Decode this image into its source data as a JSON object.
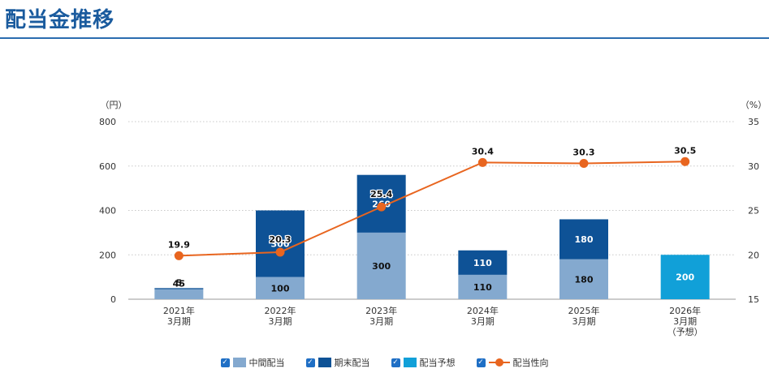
{
  "page": {
    "title": "配当金推移"
  },
  "colors": {
    "interim": "#84a9cf",
    "year_end": "#0e5296",
    "forecast": "#11a0d8",
    "payout_line": "#e8651f",
    "grid": "#c8c8c8",
    "title": "#1a5b9e"
  },
  "chart_data": {
    "type": "bar",
    "left_axis_unit": "（円）",
    "right_axis_unit": "（%）",
    "categories": [
      [
        "2021年",
        "3月期"
      ],
      [
        "2022年",
        "3月期"
      ],
      [
        "2023年",
        "3月期"
      ],
      [
        "2024年",
        "3月期"
      ],
      [
        "2025年",
        "3月期"
      ],
      [
        "2026年",
        "3月期",
        "（予想）"
      ]
    ],
    "ylim": [
      0,
      800
    ],
    "yticks": [
      0,
      200,
      400,
      600,
      800
    ],
    "y2lim": [
      15,
      35
    ],
    "y2ticks": [
      15,
      20,
      25,
      30,
      35
    ],
    "grid": true,
    "series": [
      {
        "name": "中間配当",
        "type": "bar",
        "stack": "dividend",
        "values": [
          45,
          100,
          300,
          110,
          180,
          null
        ]
      },
      {
        "name": "期末配当",
        "type": "bar",
        "stack": "dividend",
        "values": [
          5,
          300,
          260,
          110,
          180,
          null
        ]
      },
      {
        "name": "配当予想",
        "type": "bar",
        "stack": "dividend",
        "values": [
          null,
          null,
          null,
          null,
          null,
          200
        ]
      },
      {
        "name": "配当性向",
        "type": "line",
        "axis": "right",
        "values": [
          19.9,
          20.3,
          25.4,
          30.4,
          30.3,
          30.5
        ]
      }
    ]
  }
}
